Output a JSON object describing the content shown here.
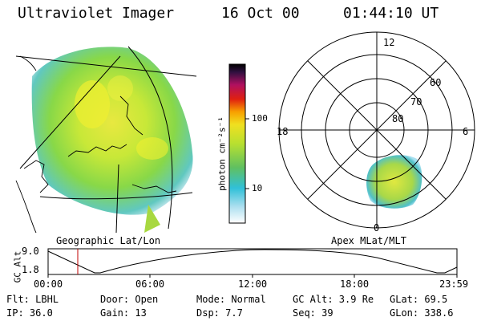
{
  "header": {
    "title": "Ultraviolet Imager",
    "date": "16 Oct 00",
    "time": "01:44:10 UT"
  },
  "colorbar": {
    "unit_label": "photon cm⁻²s⁻¹",
    "ticks": [
      "100",
      "10"
    ]
  },
  "polar_plot": {
    "mlt_labels": [
      "12",
      "18",
      "6",
      "0"
    ],
    "lat_labels": [
      "60",
      "70",
      "80"
    ]
  },
  "captions": {
    "left": "Geographic Lat/Lon",
    "right": "Apex MLat/MLT"
  },
  "timeline": {
    "axis_label": "GC Alt",
    "y_ticks": [
      "9.0",
      "1.8"
    ],
    "x_ticks": [
      "00:00",
      "06:00",
      "12:00",
      "18:00",
      "23:59"
    ],
    "marker_time": "01:44:10"
  },
  "footer": {
    "filter": "Flt: LBHL",
    "ip": "IP: 36.0",
    "door": "Door: Open",
    "gain": "Gain: 13",
    "mode": "Mode: Normal",
    "dsp": "Dsp:    7.7",
    "gc_alt": "GC Alt: 3.9 Re",
    "seq": "Seq: 39",
    "glat": "GLat:  69.5",
    "glon": "GLon: 338.6"
  },
  "colors": {
    "background": "#ffffff",
    "line": "#000000",
    "marker": "#c00000"
  }
}
